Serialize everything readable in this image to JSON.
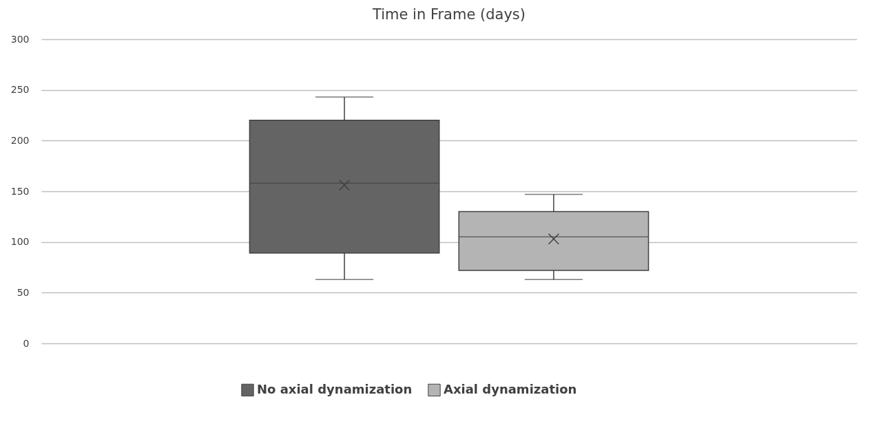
{
  "chart_data": {
    "type": "box",
    "title": "Time in Frame (days)",
    "categories": [
      null
    ],
    "series": [
      {
        "name": "No axial dynamization",
        "color": "#646464",
        "boxes": [
          {
            "low": 63,
            "q1": 89,
            "median": 158,
            "q3": 220,
            "high": 243,
            "mean": 156
          }
        ]
      },
      {
        "name": "Axial dynamization",
        "color": "#b4b4b4",
        "boxes": [
          {
            "low": 63,
            "q1": 72,
            "median": 105,
            "q3": 130,
            "high": 147,
            "mean": 103
          }
        ]
      }
    ],
    "ylim": [
      0,
      300
    ],
    "yticks": [
      0,
      50,
      100,
      150,
      200,
      250,
      300
    ],
    "grid": "y",
    "legend": "bottom"
  }
}
